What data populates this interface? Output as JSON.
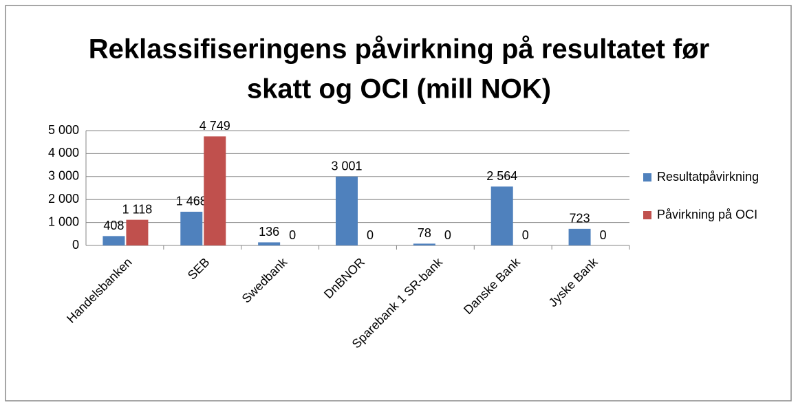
{
  "chart_data": {
    "type": "bar",
    "title": [
      "Reklassifiseringens påvirkning på resultatet før",
      "skatt  og OCI (mill NOK)"
    ],
    "categories": [
      "Handelsbanken",
      "SEB",
      "Swedbank",
      "DnBNOR",
      "Sparebank 1 SR-bank",
      "Danske Bank",
      "Jyske Bank"
    ],
    "series": [
      {
        "name": "Resultatpåvirkning",
        "color": "#4f81bd",
        "values": [
          408,
          1468,
          136,
          3001,
          78,
          2564,
          723
        ],
        "value_labels": [
          "408",
          "1 468",
          "136",
          "3 001",
          "78",
          "2 564",
          "723"
        ]
      },
      {
        "name": "Påvirkning på OCI",
        "color": "#c0504d",
        "values": [
          1118,
          4749,
          0,
          0,
          0,
          0,
          0
        ],
        "value_labels": [
          "1 118",
          "4 749",
          "0",
          "0",
          "0",
          "0",
          "0"
        ]
      }
    ],
    "ylim": [
      0,
      5000
    ],
    "yticks": [
      0,
      {
        "value": 1000,
        "label": "1 000"
      },
      {
        "value": 2000,
        "label": "2 000"
      },
      {
        "value": 3000,
        "label": "3 000"
      },
      {
        "value": 4000,
        "label": "4 000"
      },
      {
        "value": 5000,
        "label": "5 000"
      }
    ],
    "grid": true,
    "legend": "right"
  }
}
